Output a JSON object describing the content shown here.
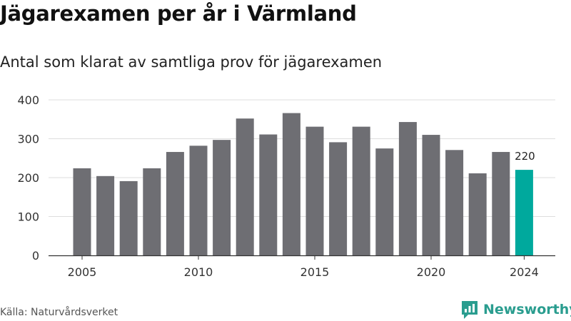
{
  "title": "Jägarexamen per år i Värmland",
  "subtitle": "Antal som klarat av samtliga prov för jägarexamen",
  "source": "Källa: Naturvårdsverket",
  "brand": {
    "name": "Newsworthy",
    "icon": "newsworthy-logo-icon",
    "color": "#2a9d8f"
  },
  "colors": {
    "bar": "#6e6e73",
    "highlight": "#00a99d",
    "grid": "#dddddd",
    "axis": "#333333"
  },
  "chart_data": {
    "type": "bar",
    "x": [
      2005,
      2006,
      2007,
      2008,
      2009,
      2010,
      2011,
      2012,
      2013,
      2014,
      2015,
      2016,
      2017,
      2018,
      2019,
      2020,
      2021,
      2022,
      2023,
      2024
    ],
    "values": [
      224,
      204,
      191,
      224,
      266,
      282,
      297,
      352,
      311,
      366,
      331,
      291,
      331,
      275,
      343,
      310,
      271,
      211,
      266,
      220
    ],
    "x_ticks": [
      "2005",
      "2010",
      "2015",
      "2020",
      "2024"
    ],
    "y_ticks": [
      0,
      100,
      200,
      300,
      400
    ],
    "ylim": [
      0,
      400
    ],
    "highlight_index": 19,
    "data_labels": [
      {
        "index": 19,
        "label": "220"
      }
    ],
    "grid": true,
    "xlabel": "",
    "ylabel": ""
  }
}
